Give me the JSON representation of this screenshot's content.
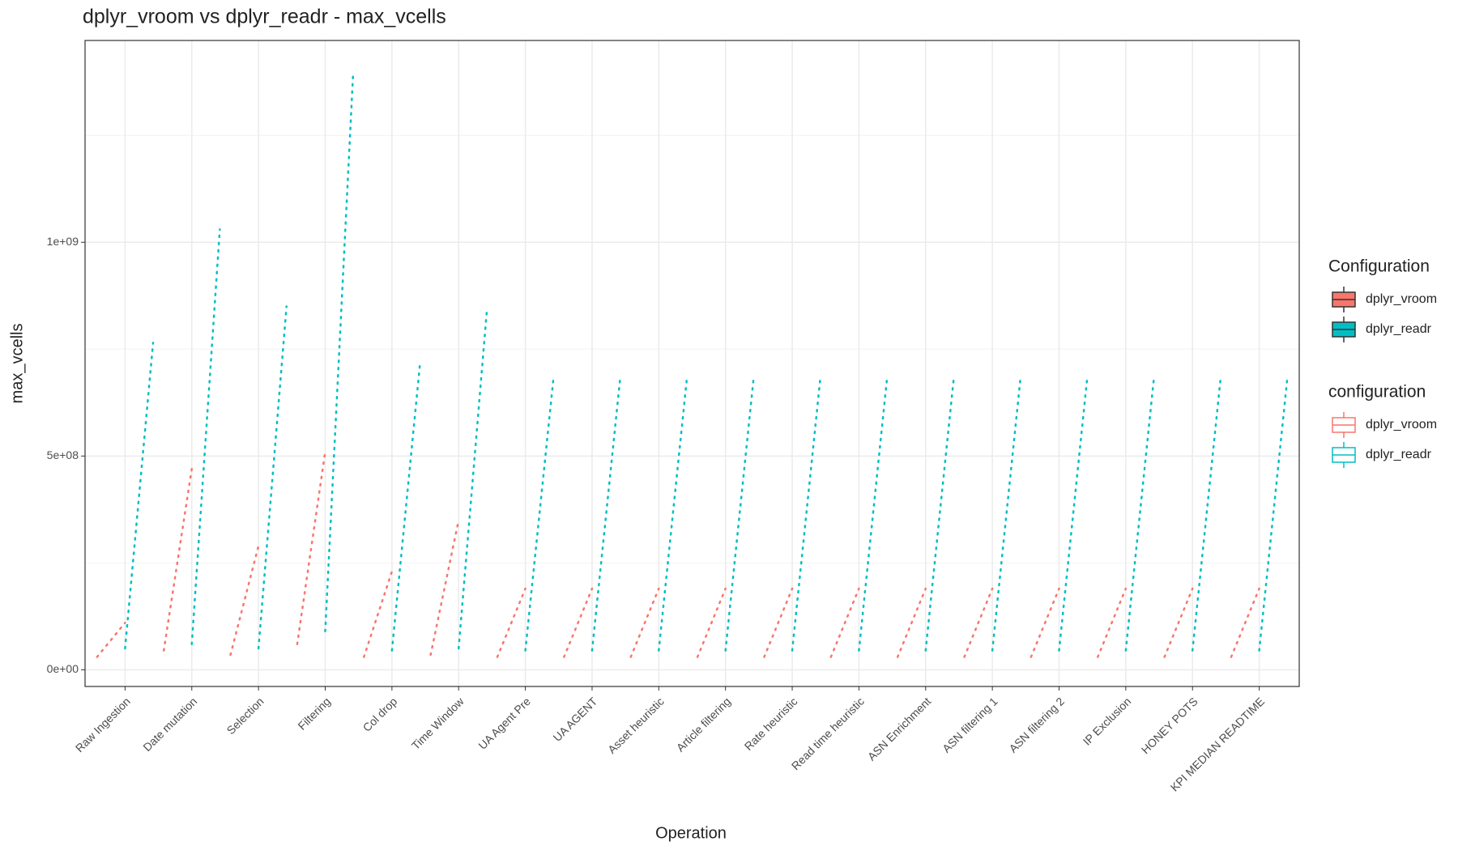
{
  "chart_data": {
    "type": "range_dots",
    "title": "dplyr_vroom vs dplyr_readr - max_vcells",
    "x_label": "Operation",
    "y_label": "max_vcells",
    "categories": [
      "Raw Ingestion",
      "Date mutation",
      "Selection",
      "Filtering",
      "Col drop",
      "Time Window",
      "UA Agent Pre",
      "UA AGENT",
      "Asset heuristic",
      "Article filtering",
      "Rate heuristic",
      "Read time heuristic",
      "ASN Enrichment",
      "ASN filtering 1",
      "ASN filtering 2",
      "IP Exclusion",
      "HONEY POTS",
      "KPI MEDIAN READTIME"
    ],
    "series": [
      {
        "name": "dplyr_vroom",
        "color": "#f8766d",
        "low": [
          30000000,
          45000000,
          35000000,
          60000000,
          30000000,
          35000000,
          30000000,
          30000000,
          30000000,
          30000000,
          30000000,
          30000000,
          30000000,
          30000000,
          30000000,
          30000000,
          30000000,
          30000000
        ],
        "high": [
          110000000,
          470000000,
          290000000,
          510000000,
          230000000,
          350000000,
          190000000,
          190000000,
          190000000,
          190000000,
          190000000,
          190000000,
          190000000,
          190000000,
          190000000,
          190000000,
          190000000,
          190000000
        ]
      },
      {
        "name": "dplyr_readr",
        "color": "#00bfc4",
        "low": [
          50000000,
          60000000,
          50000000,
          90000000,
          45000000,
          50000000,
          45000000,
          45000000,
          45000000,
          45000000,
          45000000,
          45000000,
          45000000,
          45000000,
          45000000,
          45000000,
          45000000,
          45000000
        ],
        "high": [
          765000000,
          1030000000,
          850000000,
          1400000000,
          715000000,
          835000000,
          680000000,
          680000000,
          680000000,
          680000000,
          680000000,
          680000000,
          680000000,
          680000000,
          680000000,
          680000000,
          680000000,
          680000000
        ]
      }
    ],
    "ylim": [
      -39000000,
      1472000000
    ],
    "yticks": [
      {
        "value": 0,
        "label": "0e+00"
      },
      {
        "value": 500000000,
        "label": "5e+08"
      },
      {
        "value": 1000000000,
        "label": "1e+09"
      }
    ],
    "minor_yticks": [
      250000000,
      750000000,
      1250000000
    ],
    "grid": true,
    "legend_titles": [
      "Configuration",
      "configuration"
    ]
  }
}
